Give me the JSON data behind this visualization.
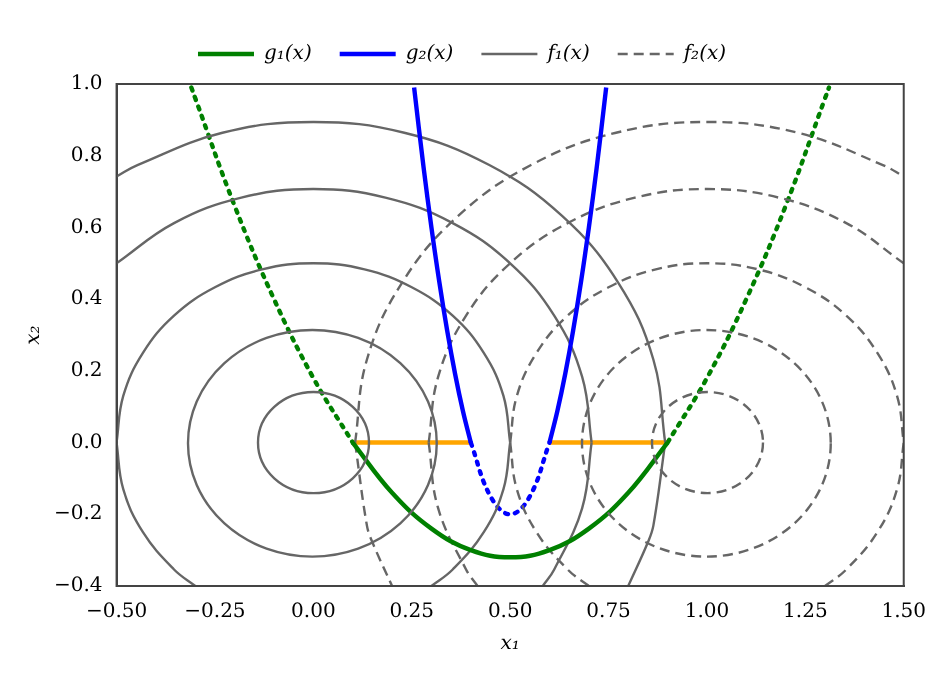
{
  "chart_data": {
    "type": "line",
    "xlabel": "x₁",
    "ylabel": "x₂",
    "legend": "top",
    "grid": false,
    "marker": "none",
    "xlim": [
      -0.5,
      1.5
    ],
    "ylim": [
      -0.4,
      1.0
    ],
    "xticks": [
      {
        "value": -0.5,
        "label": "−0.50"
      },
      {
        "value": -0.25,
        "label": "−0.25"
      },
      {
        "value": 0,
        "label": "0.00"
      },
      {
        "value": 0.25,
        "label": "0.25"
      },
      {
        "value": 0.5,
        "label": "0.50"
      },
      {
        "value": 0.75,
        "label": "0.75"
      },
      {
        "value": 1,
        "label": "1.00"
      },
      {
        "value": 1.25,
        "label": "1.25"
      },
      {
        "value": 1.5,
        "label": "1.50"
      }
    ],
    "yticks": [
      {
        "value": -0.4,
        "label": "−0.4"
      },
      {
        "value": -0.2,
        "label": "−0.2"
      },
      {
        "value": 0,
        "label": "0.0"
      },
      {
        "value": 0.2,
        "label": "0.2"
      },
      {
        "value": 0.4,
        "label": "0.4"
      },
      {
        "value": 0.6,
        "label": "0.6"
      },
      {
        "value": 0.8,
        "label": "0.8"
      },
      {
        "value": 1.0,
        "label": "1.0"
      }
    ],
    "series": [
      {
        "name": "g₁(x)",
        "color": "#008000",
        "line_style": "solid",
        "x": [
          0.1,
          0.2,
          0.3,
          0.4,
          0.5,
          0.6,
          0.7,
          0.8,
          0.9
        ],
        "values": [
          0,
          -0.14,
          -0.24,
          -0.3,
          -0.32,
          -0.3,
          -0.24,
          -0.14,
          0
        ]
      },
      {
        "name": "g₂(x)",
        "color": "#0000ff",
        "line_style": "solid",
        "x": [
          0.256,
          0.28,
          0.3,
          0.32,
          0.34,
          0.36,
          0.38,
          0.4,
          0.5,
          0.6,
          0.62,
          0.64,
          0.66,
          0.68,
          0.7,
          0.72,
          0.744
        ],
        "values": [
          0.99,
          0.768,
          0.6,
          0.448,
          0.312,
          0.192,
          0.088,
          0,
          null,
          0,
          0.088,
          0.192,
          0.312,
          0.448,
          0.6,
          0.768,
          0.99
        ]
      },
      {
        "name": "f₁(x)",
        "color": "#666666",
        "line_style": "solid",
        "x": [
          -0.5,
          -0.447,
          -0.231,
          0,
          0.231,
          0.447,
          0.632,
          0.774,
          0.864,
          0.894
        ],
        "values": [
          0.742,
          0.774,
          0.864,
          0.894,
          0.864,
          0.774,
          0.632,
          0.447,
          0.231,
          0
        ]
      },
      {
        "name": "f₂(x)",
        "color": "#666666",
        "line_style": "dashed",
        "x": [
          0.106,
          0.136,
          0.226,
          0.368,
          0.553,
          0.769,
          1,
          1.231,
          1.447,
          1.5
        ],
        "values": [
          0,
          0.231,
          0.447,
          0.632,
          0.774,
          0.864,
          0.894,
          0.864,
          0.774,
          0.742
        ]
      },
      {
        "color": "#666666",
        "line_style": "solid",
        "x": [
          -0.5,
          -0.483,
          -0.433,
          -0.354,
          -0.25,
          -0.13,
          0,
          0.13,
          0.25,
          0.354,
          0.433,
          0.483,
          0.5
        ],
        "values": [
          0,
          0.13,
          0.25,
          0.354,
          0.433,
          0.483,
          0.5,
          0.483,
          0.433,
          0.354,
          0.25,
          0.13,
          0
        ]
      },
      {
        "color": "#666666",
        "line_style": "solid",
        "x": [
          -0.5,
          -0.483,
          -0.433,
          -0.354,
          -0.3
        ],
        "values": [
          0,
          -0.13,
          -0.25,
          -0.354,
          -0.4
        ]
      },
      {
        "color": "#666666",
        "line_style": "solid",
        "x": [
          0.3,
          0.354,
          0.433,
          0.483,
          0.5
        ],
        "values": [
          -0.4,
          -0.354,
          -0.25,
          -0.13,
          0
        ]
      },
      {
        "color": "#666666",
        "line_style": "solid",
        "x": [
          -0.5,
          -0.354,
          -0.183,
          0,
          0.183,
          0.354,
          0.5,
          0.612,
          0.683,
          0.707
        ],
        "values": [
          0.5,
          0.612,
          0.683,
          0.707,
          0.683,
          0.612,
          0.5,
          0.354,
          0.183,
          0
        ]
      },
      {
        "color": "#666666",
        "line_style": "solid",
        "x": [
          0.583,
          0.612,
          0.683,
          0.707
        ],
        "values": [
          -0.4,
          -0.354,
          -0.183,
          0
        ]
      },
      {
        "color": "#666666",
        "line_style": "solid",
        "x": [
          0.8,
          0.85,
          0.864,
          0.894
        ],
        "values": [
          -0.4,
          -0.278,
          -0.231,
          0
        ]
      },
      {
        "color": "#666666",
        "line_style": "dashed",
        "x": [
          0.5,
          0.517,
          0.567,
          0.646,
          0.75,
          0.87,
          1,
          1.13,
          1.25,
          1.354,
          1.433,
          1.483,
          1.5
        ],
        "values": [
          0,
          0.13,
          0.25,
          0.354,
          0.433,
          0.483,
          0.5,
          0.483,
          0.433,
          0.354,
          0.25,
          0.13,
          0
        ]
      },
      {
        "color": "#666666",
        "line_style": "dashed",
        "x": [
          0.5,
          0.517,
          0.567,
          0.646,
          0.7
        ],
        "values": [
          0,
          -0.13,
          -0.25,
          -0.354,
          -0.4
        ]
      },
      {
        "color": "#666666",
        "line_style": "dashed",
        "x": [
          1.3,
          1.354,
          1.433,
          1.483,
          1.5
        ],
        "values": [
          -0.4,
          -0.354,
          -0.25,
          -0.13,
          0
        ]
      },
      {
        "color": "#666666",
        "line_style": "dashed",
        "x": [
          0.293,
          0.317,
          0.388,
          0.5,
          0.646,
          0.817,
          1,
          1.183,
          1.354,
          1.5
        ],
        "values": [
          0,
          0.183,
          0.354,
          0.5,
          0.612,
          0.683,
          0.707,
          0.683,
          0.612,
          0.5
        ]
      },
      {
        "color": "#666666",
        "line_style": "dashed",
        "x": [
          0.293,
          0.317,
          0.388,
          0.417
        ],
        "values": [
          0,
          -0.183,
          -0.354,
          -0.4
        ]
      },
      {
        "color": "#666666",
        "line_style": "dashed",
        "x": [
          0.106,
          0.136,
          0.15,
          0.2
        ],
        "values": [
          0,
          -0.231,
          -0.278,
          -0.4
        ]
      },
      {
        "color": "#008000",
        "line_style": "dotted",
        "x": [
          -0.31,
          -0.3,
          -0.2,
          -0.1,
          0,
          0.1,
          0.5,
          0.9,
          1.0,
          1.1,
          1.2,
          1.3,
          1.31
        ],
        "values": [
          0.99,
          0.96,
          0.66,
          0.4,
          0.18,
          0,
          null,
          0,
          0.18,
          0.4,
          0.66,
          0.96,
          0.99
        ]
      },
      {
        "color": "#0000ff",
        "line_style": "dotted",
        "x": [
          0.4,
          0.45,
          0.5,
          0.55,
          0.6
        ],
        "values": [
          0,
          -0.15,
          -0.2,
          -0.15,
          0
        ]
      },
      {
        "color": "#ffa500",
        "line_style": "solid",
        "x": [
          0.1,
          0.4,
          0.5,
          0.6,
          0.9
        ],
        "values": [
          0,
          0,
          null,
          0,
          0
        ]
      }
    ]
  }
}
